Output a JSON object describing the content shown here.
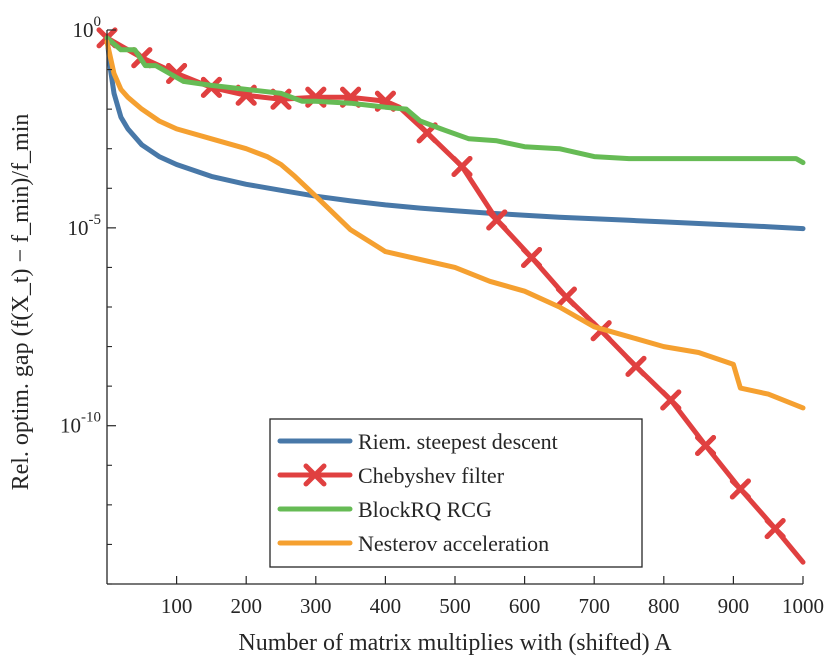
{
  "chart_data": {
    "type": "line",
    "yscale": "log",
    "title": "",
    "xlabel": "Number of matrix multiplies with (shifted) A",
    "ylabel": "Rel. optim. gap (f(X_t) − f_min)/f_min",
    "xlim": [
      0,
      1000
    ],
    "ylim_exponent": [
      -14,
      0
    ],
    "xticks": [
      100,
      200,
      300,
      400,
      500,
      600,
      700,
      800,
      900,
      1000
    ],
    "xtick_labels": [
      "100",
      "200",
      "300",
      "400",
      "500",
      "600",
      "700",
      "800",
      "900",
      "1000"
    ],
    "yticks_exponent": [
      0,
      -5,
      -10
    ],
    "ytick_labels": [
      {
        "base": "10",
        "exp": "0"
      },
      {
        "base": "10",
        "exp": "-5"
      },
      {
        "base": "10",
        "exp": "-10"
      }
    ],
    "legend_position": "bottom-center",
    "series": [
      {
        "name": "Riem. steepest descent",
        "color": "#4878a8",
        "marker": "none",
        "x": [
          0,
          5,
          10,
          20,
          30,
          50,
          75,
          100,
          150,
          200,
          250,
          300,
          350,
          400,
          450,
          500,
          550,
          600,
          650,
          700,
          750,
          800,
          850,
          900,
          950,
          1000
        ],
        "log10_y": [
          -0.2,
          -1.0,
          -1.6,
          -2.2,
          -2.5,
          -2.9,
          -3.2,
          -3.4,
          -3.7,
          -3.9,
          -4.05,
          -4.2,
          -4.32,
          -4.42,
          -4.5,
          -4.57,
          -4.63,
          -4.68,
          -4.73,
          -4.77,
          -4.81,
          -4.85,
          -4.89,
          -4.93,
          -4.97,
          -5.02
        ]
      },
      {
        "name": "Chebyshev filter",
        "color": "#e04040",
        "marker": "x",
        "x": [
          0,
          50,
          100,
          150,
          200,
          250,
          300,
          350,
          400,
          420,
          460,
          510,
          560,
          610,
          660,
          710,
          760,
          810,
          860,
          910,
          960,
          1000
        ],
        "log10_y": [
          -0.2,
          -0.7,
          -1.1,
          -1.45,
          -1.65,
          -1.75,
          -1.7,
          -1.7,
          -1.8,
          -1.95,
          -2.6,
          -3.45,
          -4.8,
          -5.75,
          -6.75,
          -7.6,
          -8.5,
          -9.35,
          -10.5,
          -11.6,
          -12.6,
          -13.45
        ]
      },
      {
        "name": "BlockRQ RCG",
        "color": "#66bb55",
        "marker": "none",
        "x": [
          0,
          20,
          40,
          55,
          70,
          90,
          110,
          150,
          200,
          250,
          280,
          300,
          350,
          400,
          430,
          450,
          480,
          520,
          560,
          600,
          650,
          700,
          750,
          800,
          850,
          900,
          950,
          990,
          1000
        ],
        "log10_y": [
          -0.2,
          -0.5,
          -0.5,
          -0.9,
          -0.9,
          -1.1,
          -1.3,
          -1.4,
          -1.5,
          -1.6,
          -1.8,
          -1.8,
          -1.85,
          -1.95,
          -2.0,
          -2.3,
          -2.5,
          -2.75,
          -2.8,
          -2.95,
          -3.0,
          -3.2,
          -3.25,
          -3.25,
          -3.25,
          -3.25,
          -3.25,
          -3.25,
          -3.35
        ]
      },
      {
        "name": "Nesterov acceleration",
        "color": "#f5a030",
        "marker": "none",
        "x": [
          0,
          5,
          10,
          20,
          30,
          50,
          75,
          100,
          150,
          200,
          230,
          250,
          270,
          300,
          350,
          400,
          450,
          500,
          550,
          600,
          650,
          700,
          750,
          800,
          850,
          900,
          910,
          950,
          1000
        ],
        "log10_y": [
          -0.3,
          -0.7,
          -1.1,
          -1.5,
          -1.7,
          -2.0,
          -2.3,
          -2.5,
          -2.75,
          -3.0,
          -3.2,
          -3.4,
          -3.7,
          -4.2,
          -5.05,
          -5.6,
          -5.8,
          -6.0,
          -6.35,
          -6.6,
          -7.0,
          -7.5,
          -7.75,
          -8.0,
          -8.15,
          -8.45,
          -9.05,
          -9.2,
          -9.55
        ]
      }
    ]
  }
}
